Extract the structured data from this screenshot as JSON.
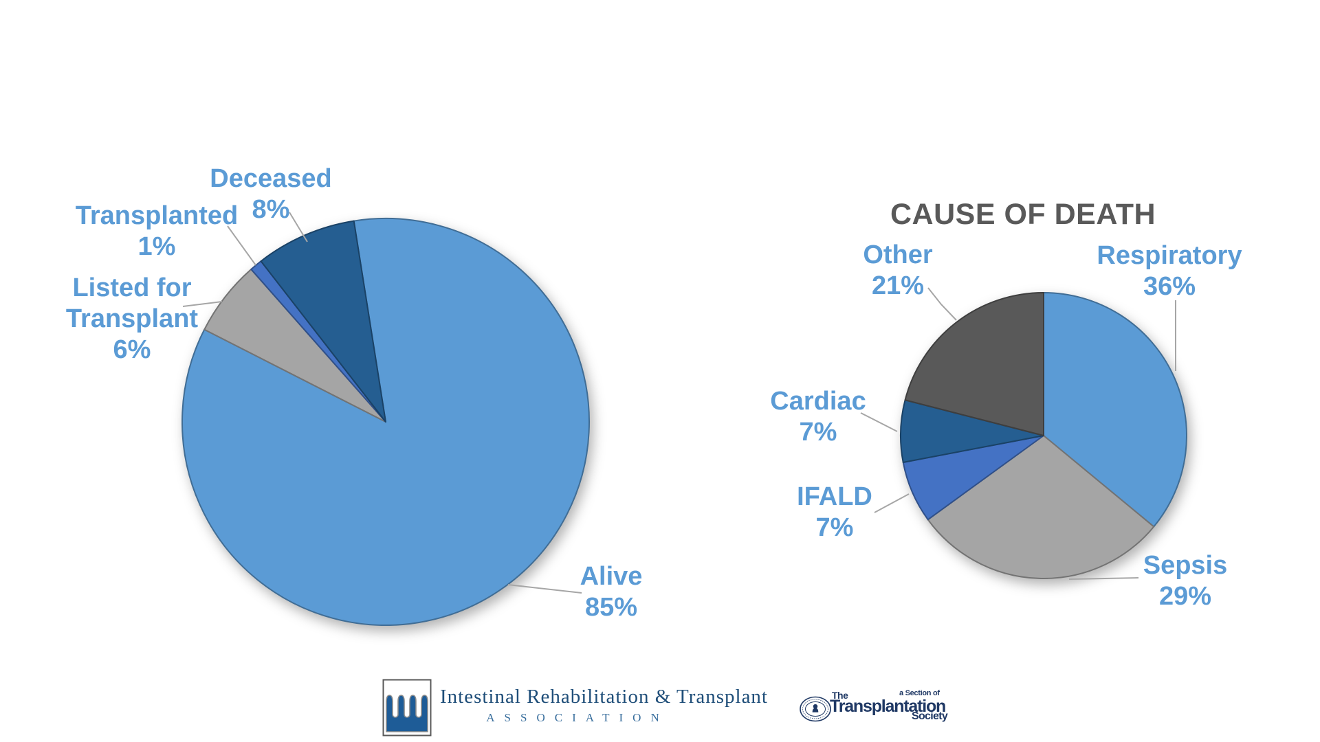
{
  "chart_data": [
    {
      "type": "pie",
      "name": "patient-status",
      "start_angle": -9,
      "legend": "none",
      "slices": [
        {
          "label": "Alive",
          "value": 85,
          "display": "85%",
          "color": "#5B9BD5"
        },
        {
          "label": "Listed for Transplant",
          "value": 6,
          "display": "6%",
          "color": "#A5A5A5",
          "label_lines": [
            "Listed for",
            "Transplant"
          ]
        },
        {
          "label": "Transplanted",
          "value": 1,
          "display": "1%",
          "color": "#4472C4"
        },
        {
          "label": "Deceased",
          "value": 8,
          "display": "8%",
          "color": "#255E91"
        }
      ]
    },
    {
      "type": "pie",
      "name": "cause-of-death",
      "title": "CAUSE OF DEATH",
      "start_angle": 0,
      "legend": "none",
      "slices": [
        {
          "label": "Respiratory",
          "value": 36,
          "display": "36%",
          "color": "#5B9BD5"
        },
        {
          "label": "Sepsis",
          "value": 29,
          "display": "29%",
          "color": "#A5A5A5"
        },
        {
          "label": "IFALD",
          "value": 7,
          "display": "7%",
          "color": "#4472C4"
        },
        {
          "label": "Cardiac",
          "value": 7,
          "display": "7%",
          "color": "#255E91"
        },
        {
          "label": "Other",
          "value": 21,
          "display": "21%",
          "color": "#595959"
        }
      ]
    }
  ],
  "footer": {
    "irta": {
      "line1": "Intestinal Rehabilitation & Transplant",
      "line2": "ASSOCIATION"
    },
    "tts": {
      "the": "The",
      "name": "Transplantation",
      "section": "a Section of",
      "society": "Society"
    }
  },
  "colors": {
    "label_text": "#5B9BD5",
    "title_text": "#595959",
    "leader_line": "#A6A6A6",
    "irta_navy": "#1F4E79",
    "irta_emblem_blue": "#1E5C97",
    "tts_navy": "#1F3864",
    "background": "#FFFFFF"
  }
}
